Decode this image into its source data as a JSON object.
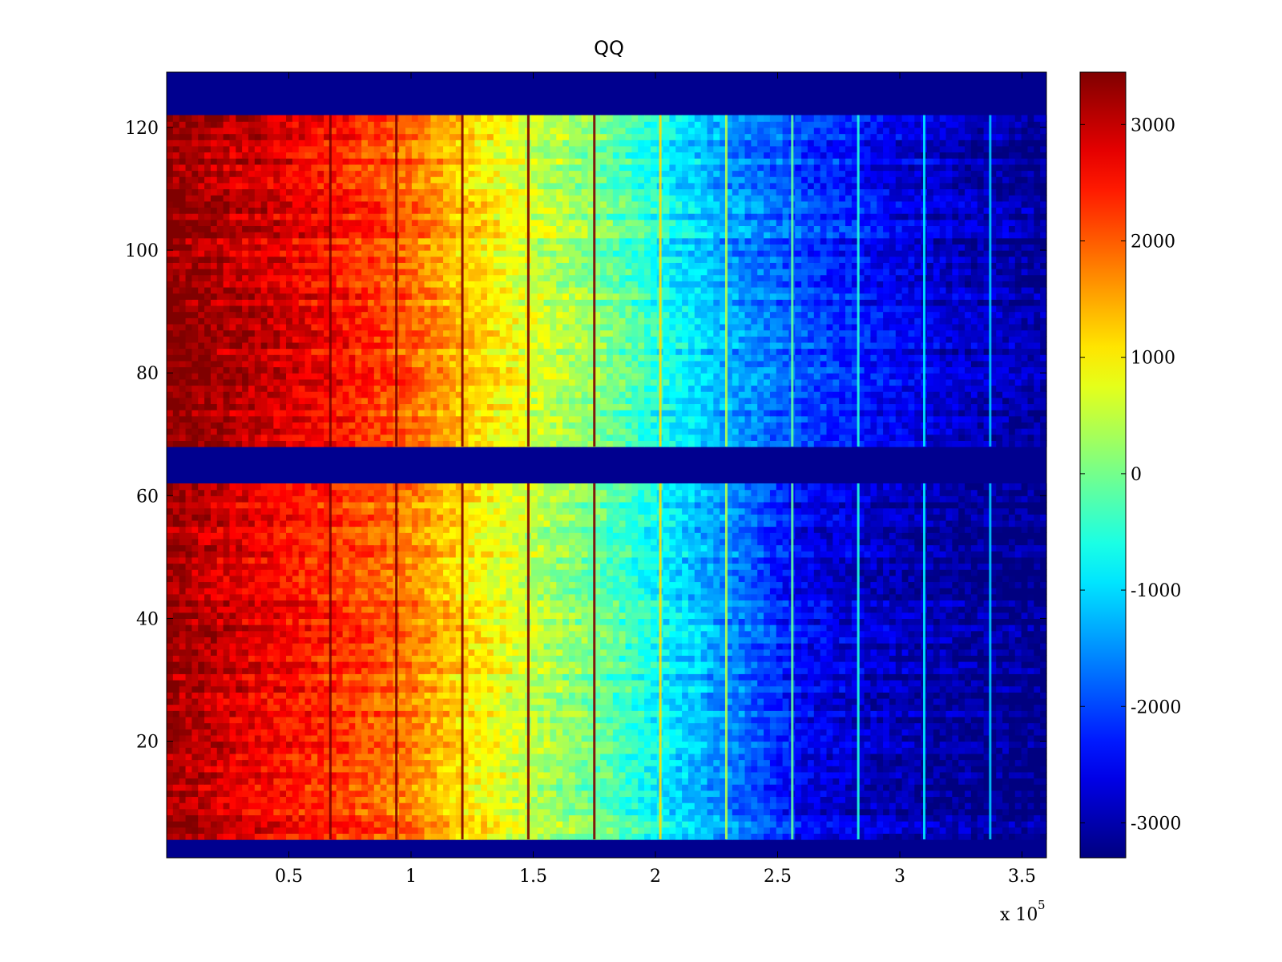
{
  "chart_data": {
    "type": "heatmap",
    "title": "QQ",
    "xlabel": "",
    "ylabel": "",
    "x_multiplier_label": "x 10",
    "x_multiplier_exponent": "5",
    "xlim": [
      0,
      3.6
    ],
    "ylim": [
      1,
      129
    ],
    "x_ticks": [
      0.5,
      1,
      1.5,
      2,
      2.5,
      3,
      3.5
    ],
    "x_tick_labels": [
      "0.5",
      "1",
      "1.5",
      "2",
      "2.5",
      "3",
      "3.5"
    ],
    "y_ticks": [
      20,
      40,
      60,
      80,
      100,
      120
    ],
    "y_tick_labels": [
      "20",
      "40",
      "60",
      "80",
      "100",
      "120"
    ],
    "colormap": "jet",
    "clim": [
      -3300,
      3450
    ],
    "colorbar_ticks": [
      3000,
      2000,
      1000,
      0,
      -1000,
      -2000,
      -3000
    ],
    "colorbar_tick_labels": [
      "3000",
      "2000",
      "1000",
      "0",
      "-1000",
      "-2000",
      "-3000"
    ],
    "empty_row_bands": [
      [
        1,
        4
      ],
      [
        62,
        68
      ],
      [
        122,
        129
      ]
    ],
    "background_value": -3300,
    "stripe_x_positions": [
      0.67,
      0.94,
      1.21,
      1.48,
      1.75,
      2.02,
      2.29,
      2.56,
      2.83,
      3.1,
      3.37
    ],
    "column_profile": {
      "x": [
        0,
        0.4,
        0.7,
        1.0,
        1.2,
        1.5,
        1.8,
        2.0,
        2.3,
        2.6,
        3.0,
        3.3,
        3.6
      ],
      "value_rows_65_122": [
        3400,
        2900,
        2500,
        1900,
        1300,
        600,
        0,
        -600,
        -1400,
        -2000,
        -2600,
        -2900,
        -3100
      ],
      "value_rows_4_62": [
        3300,
        2700,
        2300,
        1800,
        1200,
        500,
        -100,
        -700,
        -1500,
        -2500,
        -2900,
        -3100,
        -3200
      ]
    }
  }
}
